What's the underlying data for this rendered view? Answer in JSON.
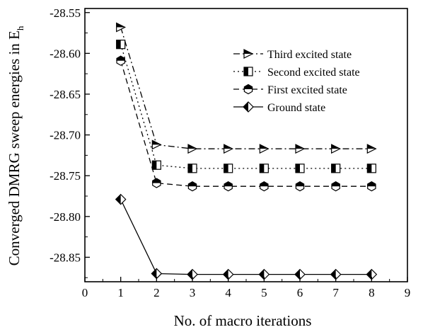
{
  "chart_data": {
    "type": "line",
    "title": "",
    "xlabel": "No. of macro iterations",
    "ylabel_main": "Converged DMRG sweep energies in E",
    "ylabel_sub": "h",
    "xlim": [
      0,
      9
    ],
    "ylim": [
      -28.88,
      -28.545
    ],
    "xticks": [
      0,
      1,
      2,
      3,
      4,
      5,
      6,
      7,
      8,
      9
    ],
    "yticks": [
      -28.55,
      -28.6,
      -28.65,
      -28.7,
      -28.75,
      -28.8,
      -28.85
    ],
    "xtick_labels": [
      "0",
      "1",
      "2",
      "3",
      "4",
      "5",
      "6",
      "7",
      "8",
      "9"
    ],
    "ytick_labels": [
      "-28.55",
      "-28.60",
      "-28.65",
      "-28.70",
      "-28.75",
      "-28.80",
      "-28.85"
    ],
    "grid": false,
    "legend_position": "top-right",
    "x": [
      1,
      2,
      3,
      4,
      5,
      6,
      7,
      8
    ],
    "series": [
      {
        "name": "Third excited state",
        "line_style": "dash-dot",
        "marker": "right-triangle",
        "color": "#000000",
        "values": [
          -28.568,
          -28.712,
          -28.717,
          -28.717,
          -28.717,
          -28.717,
          -28.717,
          -28.717
        ]
      },
      {
        "name": "Second excited state",
        "line_style": "dotted",
        "marker": "half-square",
        "color": "#000000",
        "values": [
          -28.589,
          -28.737,
          -28.741,
          -28.741,
          -28.741,
          -28.741,
          -28.741,
          -28.741
        ]
      },
      {
        "name": "First excited state",
        "line_style": "dashed",
        "marker": "half-hexagon",
        "color": "#000000",
        "values": [
          -28.609,
          -28.759,
          -28.763,
          -28.763,
          -28.763,
          -28.763,
          -28.763,
          -28.763
        ]
      },
      {
        "name": "Ground state",
        "line_style": "solid",
        "marker": "half-diamond",
        "color": "#000000",
        "values": [
          -28.779,
          -28.87,
          -28.871,
          -28.871,
          -28.871,
          -28.871,
          -28.871,
          -28.871
        ]
      }
    ]
  }
}
